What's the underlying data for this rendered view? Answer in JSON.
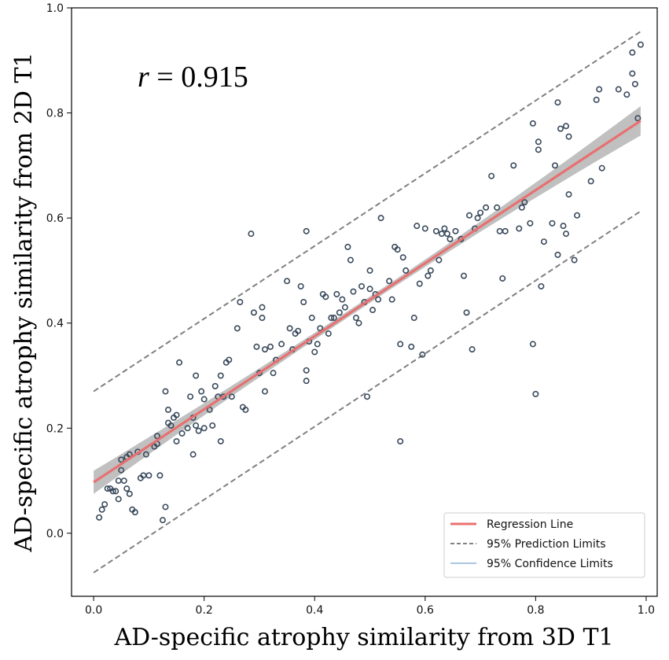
{
  "chart_data": {
    "type": "scatter",
    "xlabel": "AD-specific atrophy similarity from 3D T1",
    "ylabel": "AD-specific atrophy similarity from 2D T1",
    "xlim": [
      -0.04,
      1.02
    ],
    "ylim": [
      -0.12,
      1.0
    ],
    "x_ticks": [
      "0.0",
      "0.2",
      "0.4",
      "0.6",
      "0.8",
      "1.0"
    ],
    "y_ticks": [
      "0.0",
      "0.2",
      "0.4",
      "0.6",
      "0.8",
      "1.0"
    ],
    "annotation": {
      "var": "r",
      "text": " = 0.915"
    },
    "regression": {
      "intercept": 0.097,
      "slope": 0.695,
      "x_range": [
        0.0,
        0.99
      ]
    },
    "prediction_limits": {
      "upper": [
        [
          0.0,
          0.27
        ],
        [
          0.99,
          0.955
        ]
      ],
      "lower": [
        [
          0.0,
          -0.075
        ],
        [
          0.99,
          0.613
        ]
      ]
    },
    "confidence_band_halfwidth": {
      "at_start": 0.022,
      "at_center": 0.006,
      "at_end": 0.028
    },
    "legend": {
      "position": "bottom-right",
      "entries": [
        "Regression Line",
        "95% Prediction Limits",
        "95% Confidence Limits"
      ]
    },
    "colors": {
      "points": "#3a4a5c",
      "regression": "#e87070",
      "prediction": "#808080",
      "confidence_band": "#bdbdbd",
      "confidence_legend": "#a9c6df"
    },
    "points": [
      [
        0.01,
        0.03
      ],
      [
        0.015,
        0.045
      ],
      [
        0.02,
        0.055
      ],
      [
        0.025,
        0.085
      ],
      [
        0.03,
        0.085
      ],
      [
        0.035,
        0.08
      ],
      [
        0.04,
        0.08
      ],
      [
        0.045,
        0.065
      ],
      [
        0.045,
        0.1
      ],
      [
        0.05,
        0.12
      ],
      [
        0.05,
        0.14
      ],
      [
        0.055,
        0.1
      ],
      [
        0.06,
        0.085
      ],
      [
        0.06,
        0.145
      ],
      [
        0.065,
        0.075
      ],
      [
        0.065,
        0.15
      ],
      [
        0.07,
        0.045
      ],
      [
        0.075,
        0.04
      ],
      [
        0.08,
        0.155
      ],
      [
        0.085,
        0.105
      ],
      [
        0.09,
        0.11
      ],
      [
        0.095,
        0.15
      ],
      [
        0.1,
        0.11
      ],
      [
        0.11,
        0.165
      ],
      [
        0.115,
        0.17
      ],
      [
        0.115,
        0.185
      ],
      [
        0.12,
        0.11
      ],
      [
        0.125,
        0.025
      ],
      [
        0.13,
        0.27
      ],
      [
        0.13,
        0.05
      ],
      [
        0.135,
        0.21
      ],
      [
        0.135,
        0.235
      ],
      [
        0.14,
        0.205
      ],
      [
        0.145,
        0.22
      ],
      [
        0.15,
        0.225
      ],
      [
        0.15,
        0.175
      ],
      [
        0.155,
        0.325
      ],
      [
        0.16,
        0.19
      ],
      [
        0.17,
        0.2
      ],
      [
        0.175,
        0.26
      ],
      [
        0.18,
        0.15
      ],
      [
        0.18,
        0.22
      ],
      [
        0.185,
        0.205
      ],
      [
        0.185,
        0.3
      ],
      [
        0.19,
        0.195
      ],
      [
        0.195,
        0.27
      ],
      [
        0.2,
        0.255
      ],
      [
        0.2,
        0.2
      ],
      [
        0.21,
        0.235
      ],
      [
        0.215,
        0.205
      ],
      [
        0.22,
        0.28
      ],
      [
        0.225,
        0.26
      ],
      [
        0.23,
        0.3
      ],
      [
        0.23,
        0.175
      ],
      [
        0.235,
        0.26
      ],
      [
        0.24,
        0.325
      ],
      [
        0.245,
        0.33
      ],
      [
        0.25,
        0.26
      ],
      [
        0.26,
        0.39
      ],
      [
        0.265,
        0.44
      ],
      [
        0.27,
        0.24
      ],
      [
        0.275,
        0.235
      ],
      [
        0.285,
        0.57
      ],
      [
        0.29,
        0.42
      ],
      [
        0.295,
        0.355
      ],
      [
        0.3,
        0.305
      ],
      [
        0.305,
        0.43
      ],
      [
        0.305,
        0.41
      ],
      [
        0.31,
        0.35
      ],
      [
        0.31,
        0.27
      ],
      [
        0.32,
        0.355
      ],
      [
        0.325,
        0.305
      ],
      [
        0.33,
        0.33
      ],
      [
        0.34,
        0.36
      ],
      [
        0.35,
        0.48
      ],
      [
        0.355,
        0.39
      ],
      [
        0.36,
        0.35
      ],
      [
        0.365,
        0.38
      ],
      [
        0.37,
        0.385
      ],
      [
        0.375,
        0.47
      ],
      [
        0.38,
        0.44
      ],
      [
        0.385,
        0.31
      ],
      [
        0.385,
        0.29
      ],
      [
        0.385,
        0.575
      ],
      [
        0.39,
        0.365
      ],
      [
        0.395,
        0.41
      ],
      [
        0.4,
        0.345
      ],
      [
        0.405,
        0.36
      ],
      [
        0.41,
        0.39
      ],
      [
        0.415,
        0.455
      ],
      [
        0.42,
        0.45
      ],
      [
        0.425,
        0.38
      ],
      [
        0.43,
        0.41
      ],
      [
        0.435,
        0.41
      ],
      [
        0.44,
        0.455
      ],
      [
        0.445,
        0.42
      ],
      [
        0.45,
        0.445
      ],
      [
        0.455,
        0.43
      ],
      [
        0.46,
        0.545
      ],
      [
        0.465,
        0.52
      ],
      [
        0.47,
        0.46
      ],
      [
        0.475,
        0.41
      ],
      [
        0.48,
        0.4
      ],
      [
        0.485,
        0.47
      ],
      [
        0.49,
        0.44
      ],
      [
        0.495,
        0.26
      ],
      [
        0.5,
        0.5
      ],
      [
        0.5,
        0.465
      ],
      [
        0.505,
        0.425
      ],
      [
        0.51,
        0.455
      ],
      [
        0.515,
        0.445
      ],
      [
        0.52,
        0.6
      ],
      [
        0.535,
        0.48
      ],
      [
        0.54,
        0.445
      ],
      [
        0.545,
        0.545
      ],
      [
        0.55,
        0.54
      ],
      [
        0.555,
        0.36
      ],
      [
        0.555,
        0.175
      ],
      [
        0.56,
        0.525
      ],
      [
        0.565,
        0.5
      ],
      [
        0.575,
        0.355
      ],
      [
        0.58,
        0.41
      ],
      [
        0.585,
        0.585
      ],
      [
        0.59,
        0.475
      ],
      [
        0.595,
        0.34
      ],
      [
        0.6,
        0.58
      ],
      [
        0.605,
        0.49
      ],
      [
        0.61,
        0.5
      ],
      [
        0.62,
        0.575
      ],
      [
        0.625,
        0.52
      ],
      [
        0.63,
        0.57
      ],
      [
        0.635,
        0.58
      ],
      [
        0.64,
        0.57
      ],
      [
        0.645,
        0.56
      ],
      [
        0.655,
        0.575
      ],
      [
        0.665,
        0.56
      ],
      [
        0.67,
        0.49
      ],
      [
        0.675,
        0.42
      ],
      [
        0.68,
        0.605
      ],
      [
        0.685,
        0.35
      ],
      [
        0.69,
        0.58
      ],
      [
        0.695,
        0.6
      ],
      [
        0.7,
        0.61
      ],
      [
        0.71,
        0.62
      ],
      [
        0.72,
        0.68
      ],
      [
        0.73,
        0.62
      ],
      [
        0.735,
        0.575
      ],
      [
        0.74,
        0.485
      ],
      [
        0.745,
        0.575
      ],
      [
        0.76,
        0.7
      ],
      [
        0.77,
        0.58
      ],
      [
        0.775,
        0.62
      ],
      [
        0.78,
        0.63
      ],
      [
        0.79,
        0.59
      ],
      [
        0.795,
        0.36
      ],
      [
        0.795,
        0.78
      ],
      [
        0.8,
        0.265
      ],
      [
        0.805,
        0.73
      ],
      [
        0.805,
        0.745
      ],
      [
        0.81,
        0.47
      ],
      [
        0.815,
        0.555
      ],
      [
        0.83,
        0.59
      ],
      [
        0.835,
        0.7
      ],
      [
        0.84,
        0.53
      ],
      [
        0.84,
        0.82
      ],
      [
        0.845,
        0.77
      ],
      [
        0.85,
        0.585
      ],
      [
        0.855,
        0.775
      ],
      [
        0.855,
        0.57
      ],
      [
        0.86,
        0.755
      ],
      [
        0.86,
        0.645
      ],
      [
        0.87,
        0.52
      ],
      [
        0.875,
        0.605
      ],
      [
        0.9,
        0.67
      ],
      [
        0.91,
        0.825
      ],
      [
        0.915,
        0.845
      ],
      [
        0.92,
        0.695
      ],
      [
        0.95,
        0.845
      ],
      [
        0.965,
        0.835
      ],
      [
        0.975,
        0.915
      ],
      [
        0.975,
        0.875
      ],
      [
        0.98,
        0.855
      ],
      [
        0.985,
        0.79
      ],
      [
        0.99,
        0.93
      ]
    ]
  }
}
